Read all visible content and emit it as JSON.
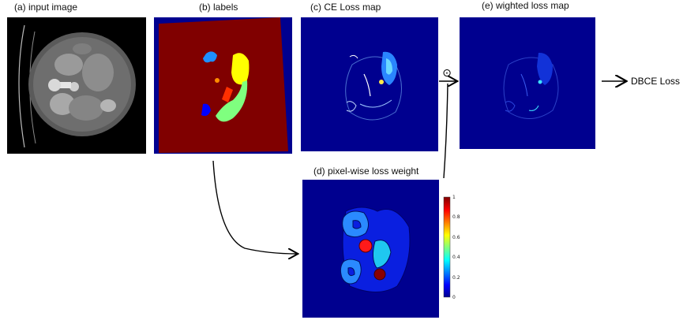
{
  "captions": {
    "input": "(a) input image",
    "labels": "(b) labels",
    "ce": "(c) CE Loss map",
    "weighted": "(e) wighted loss map",
    "weight": "(d) pixel-wise loss weight"
  },
  "output_label": "DBCE Loss",
  "operator_symbol": "⊙",
  "colorbar": {
    "ticks": [
      "1",
      "0.8",
      "0.6",
      "0.4",
      "0.2",
      "0"
    ],
    "colors": [
      "#800000",
      "#ff0000",
      "#ffff00",
      "#00ffff",
      "#0000ff",
      "#00008f"
    ]
  },
  "colors": {
    "jet_dark_blue": "#00008f",
    "jet_dark_red": "#800000",
    "arrow": "#000000"
  }
}
